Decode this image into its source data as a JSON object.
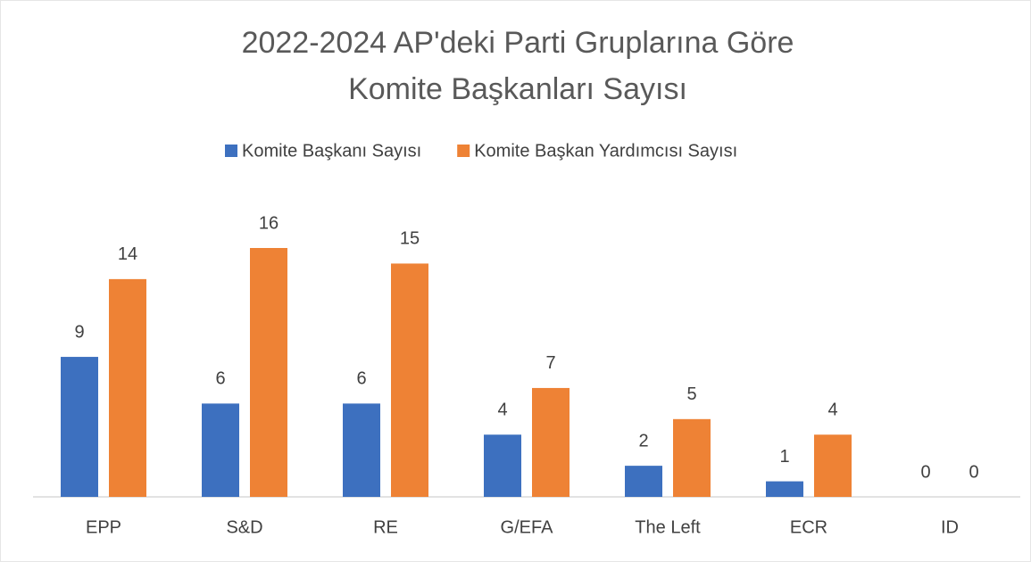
{
  "chart_data": {
    "type": "bar",
    "title": [
      "2022-2024 AP'deki Parti Gruplarına Göre",
      "Komite Başkanları Sayısı"
    ],
    "categories": [
      "EPP",
      "S&D",
      "RE",
      "G/EFA",
      "The Left",
      "ECR",
      "ID"
    ],
    "series": [
      {
        "name": "Komite Başkanı Sayısı",
        "color": "#3d70bf",
        "values": [
          9,
          6,
          6,
          4,
          2,
          1,
          0
        ]
      },
      {
        "name": "Komite Başkan Yardımcısı Sayısı",
        "color": "#ee8235",
        "values": [
          14,
          16,
          15,
          7,
          5,
          4,
          0
        ]
      }
    ],
    "legend": "top"
  }
}
